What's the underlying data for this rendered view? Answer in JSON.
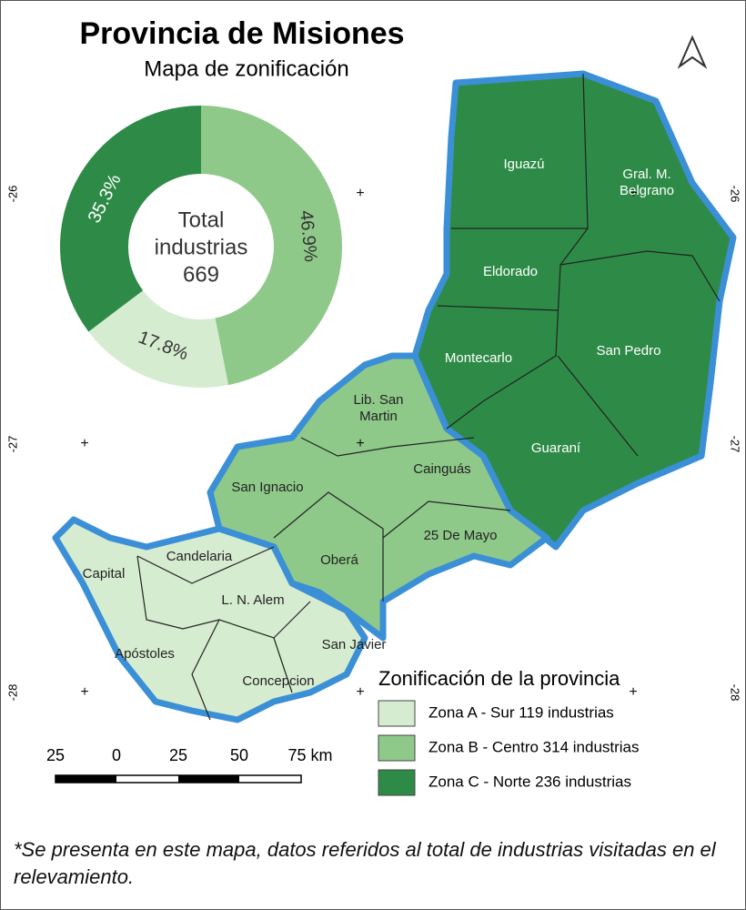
{
  "header": {
    "title": "Provincia de Misiones",
    "subtitle": "Mapa de zonificación"
  },
  "chart_data": {
    "type": "donut",
    "values": [
      46.9,
      17.8,
      35.3
    ],
    "value_labels": [
      "46.9%",
      "17.8%",
      "35.3%"
    ],
    "colors": [
      "#8fc98a",
      "#d6ecd0",
      "#2e8b47"
    ],
    "center_label": [
      "Total",
      "industrias"
    ],
    "total": 669
  },
  "regions": [
    {
      "lines": [
        "Iguazú"
      ]
    },
    {
      "lines": [
        "Gral. M.",
        "Belgrano"
      ]
    },
    {
      "lines": [
        "Eldorado"
      ]
    },
    {
      "lines": [
        "Montecarlo"
      ]
    },
    {
      "lines": [
        "San Pedro"
      ]
    },
    {
      "lines": [
        "Lib. San",
        "Martin"
      ]
    },
    {
      "lines": [
        "Guaraní"
      ]
    },
    {
      "lines": [
        "San Ignacio"
      ]
    },
    {
      "lines": [
        "Cainguás"
      ]
    },
    {
      "lines": [
        "25 De Mayo"
      ]
    },
    {
      "lines": [
        "Candelaria"
      ]
    },
    {
      "lines": [
        "Capital"
      ]
    },
    {
      "lines": [
        "Oberá"
      ]
    },
    {
      "lines": [
        "L. N. Alem"
      ]
    },
    {
      "lines": [
        "Apóstoles"
      ]
    },
    {
      "lines": [
        "San Javier"
      ]
    },
    {
      "lines": [
        "Concepcion"
      ]
    }
  ],
  "legend": {
    "title": "Zonificación de la provincia",
    "entries": [
      {
        "label": "Zona A - Sur 119 industrias",
        "color": "#d6ecd0"
      },
      {
        "label": "Zona B - Centro 314 industrias",
        "color": "#8fc98a"
      },
      {
        "label": "Zona C - Norte 236 industrias",
        "color": "#2e8b47"
      }
    ]
  },
  "scale_bar": [
    "25",
    "0",
    "25",
    "50",
    "75 km"
  ],
  "latitude_labels": [
    "-26",
    "-27",
    "-28"
  ],
  "footnote": "*Se presenta en este mapa, datos referidos al total de industrias visitadas en el relevamiento."
}
